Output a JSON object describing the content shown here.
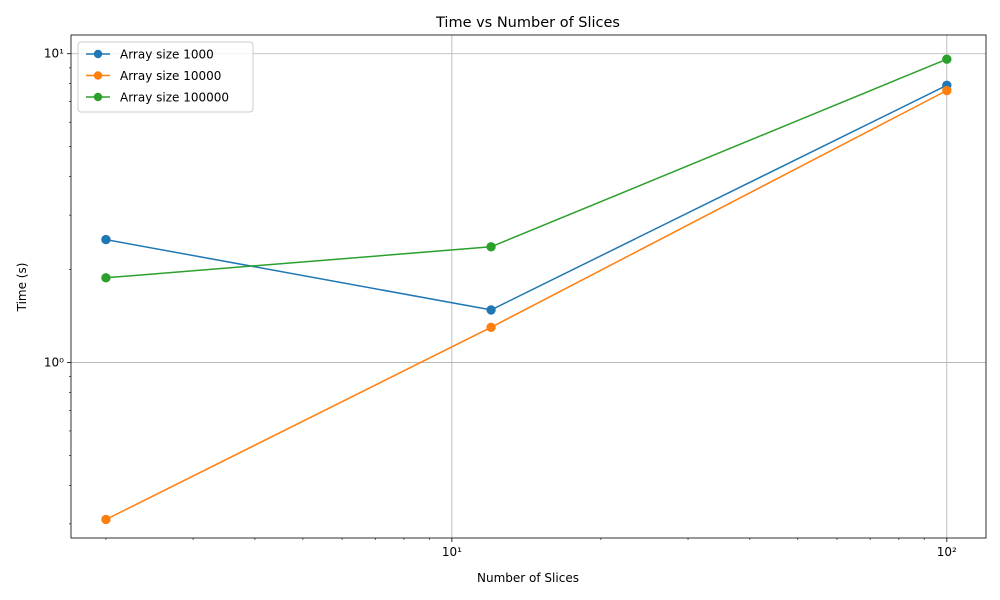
{
  "chart_data": {
    "type": "line",
    "title": "Time vs Number of Slices",
    "xlabel": "Number of Slices",
    "ylabel": "Time (s)",
    "xscale": "log",
    "yscale": "log",
    "x": [
      2,
      12,
      100
    ],
    "xlim": [
      1.7,
      120
    ],
    "ylim": [
      0.27,
      11.5
    ],
    "grid": true,
    "legend_position": "upper left",
    "marker": "circle",
    "x_major_ticks": [
      {
        "value": 10,
        "label": "10¹"
      },
      {
        "value": 100,
        "label": "10²"
      }
    ],
    "y_major_ticks": [
      {
        "value": 1,
        "label": "10⁰"
      },
      {
        "value": 10,
        "label": "10¹"
      }
    ],
    "series": [
      {
        "name": "Array size 1000",
        "color": "#1f77b4",
        "values": [
          2.5,
          1.48,
          7.9
        ]
      },
      {
        "name": "Array size 10000",
        "color": "#ff7f0e",
        "values": [
          0.31,
          1.3,
          7.6
        ]
      },
      {
        "name": "Array size 100000",
        "color": "#2ca02c",
        "values": [
          1.88,
          2.37,
          9.6
        ]
      }
    ]
  }
}
